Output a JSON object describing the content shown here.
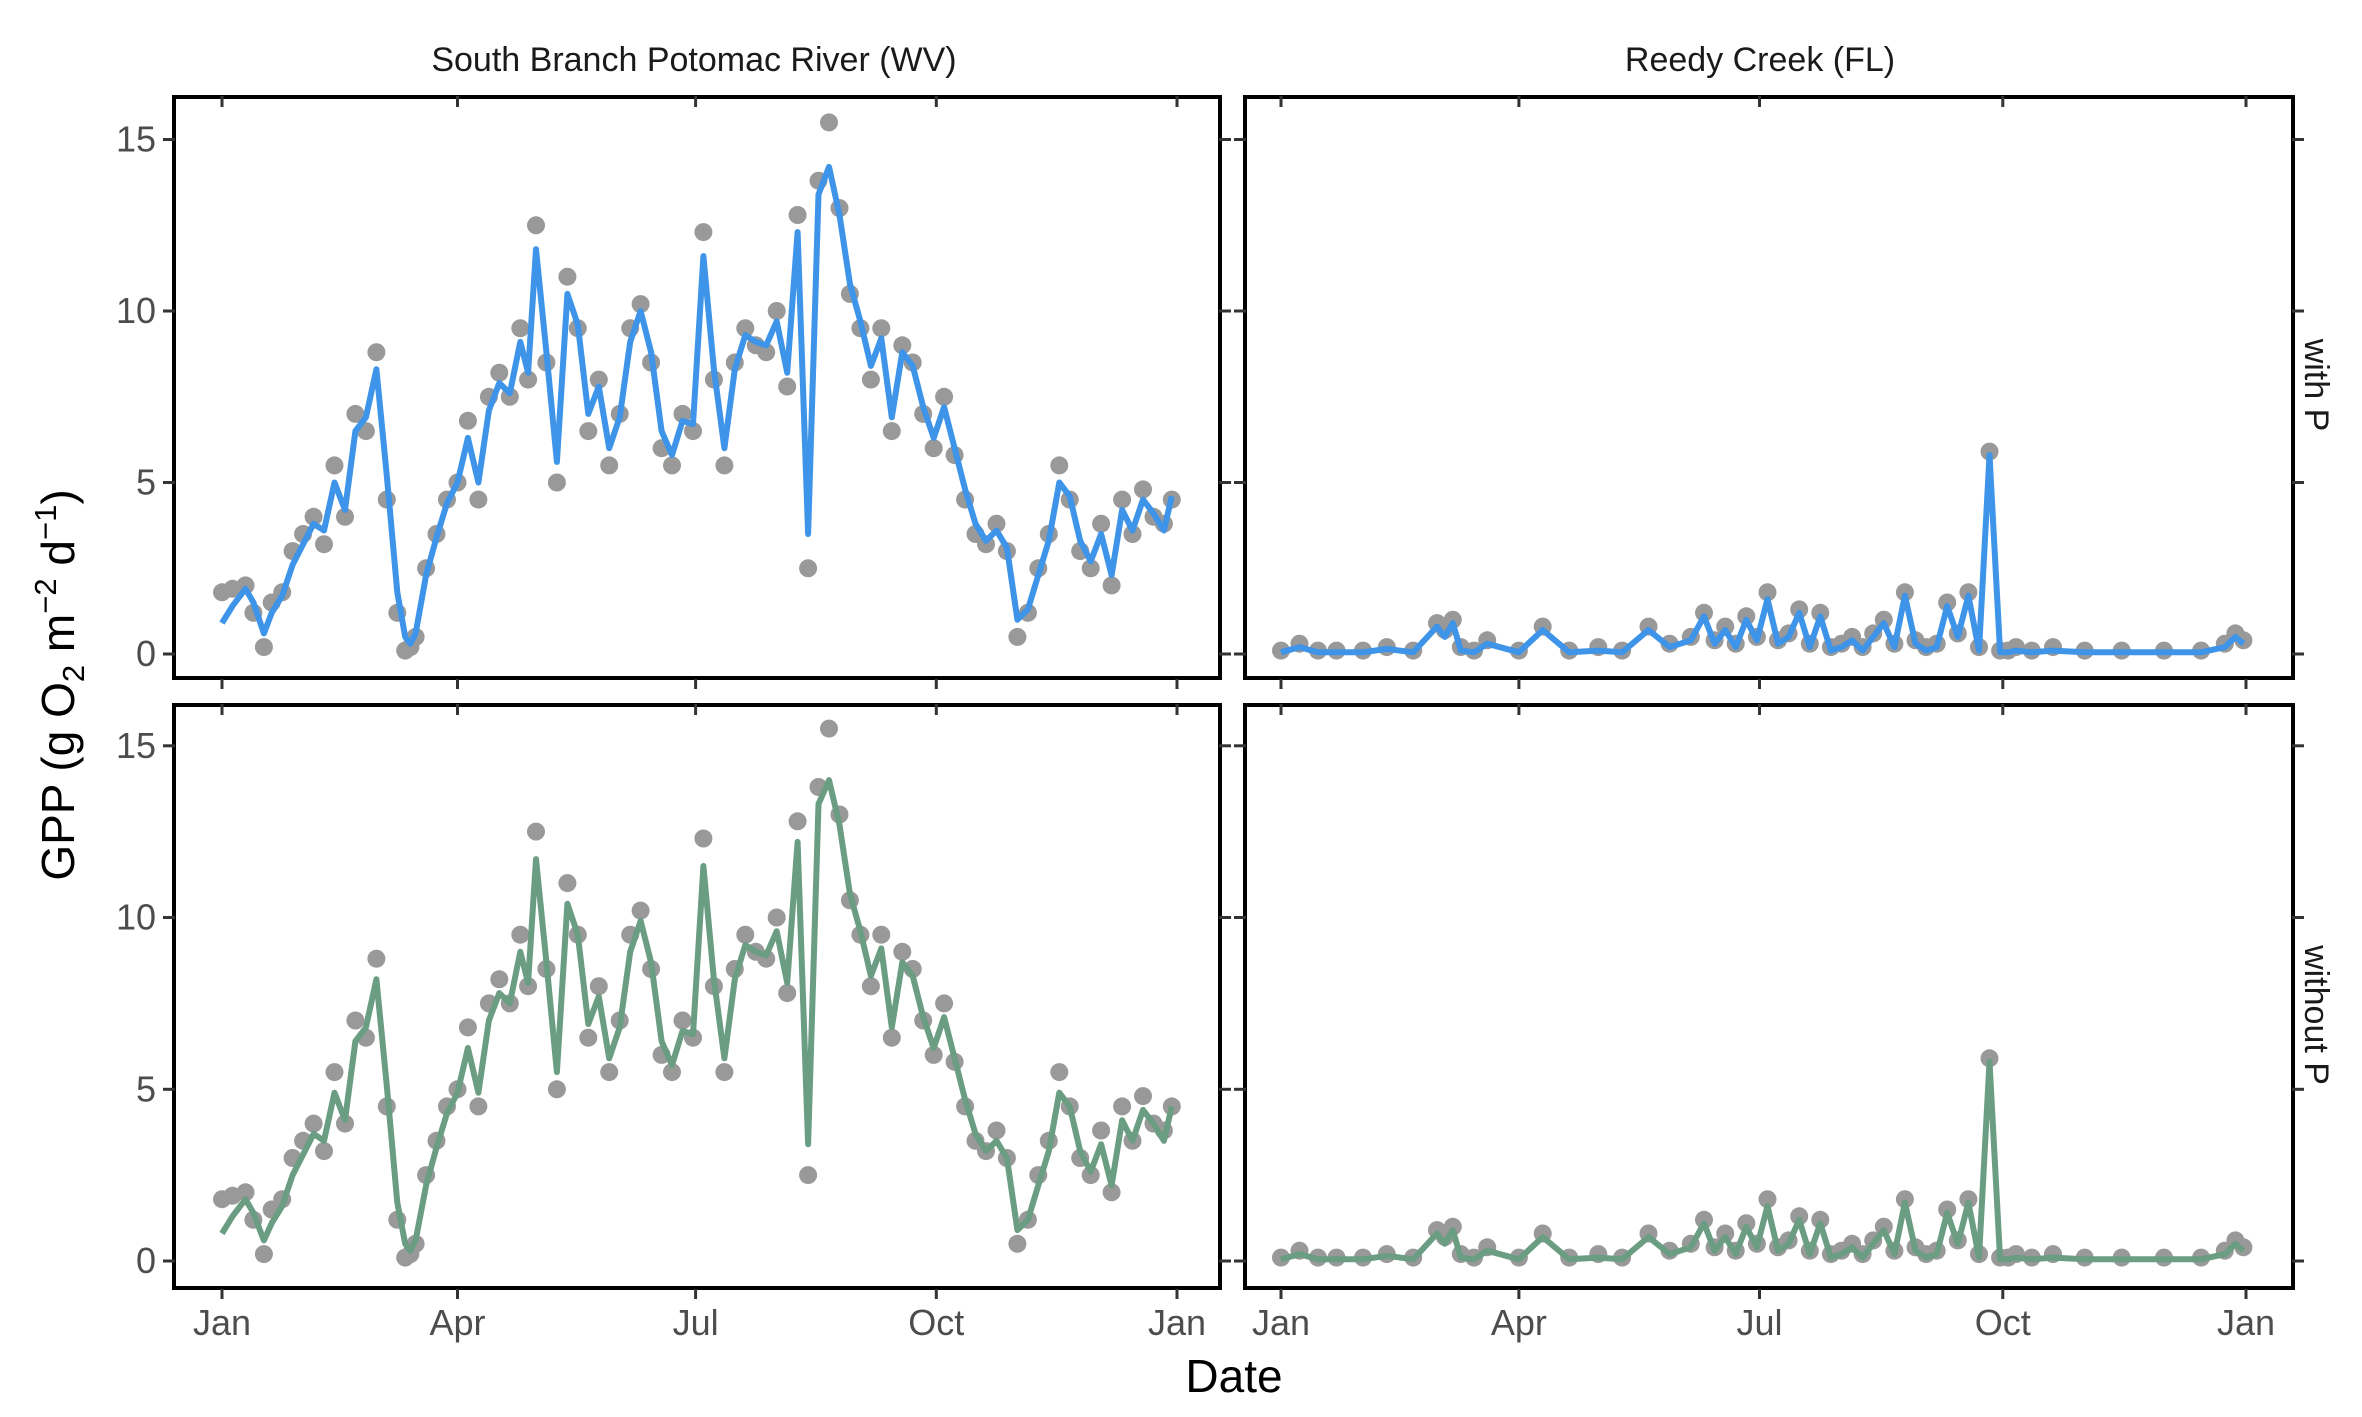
{
  "chart_data": {
    "type": "line",
    "xlabel": "Date",
    "ylabel": "GPP (g O₂ m⁻² d⁻¹)",
    "ylabel_parts": {
      "main": "GPP (g  O",
      "sub": "2",
      "mid1": " m",
      "sup1": "−2",
      "mid2": " d",
      "sup2": "−1",
      "end": ")"
    },
    "x_ticks": [
      "Jan",
      "Apr",
      "Jul",
      "Oct",
      "Jan"
    ],
    "y_ticks": [
      "0",
      "5",
      "10",
      "15"
    ],
    "xlim": [
      "2023-01-01",
      "2023-12-31"
    ],
    "ylim": [
      0,
      15.5
    ],
    "columns": [
      "South Branch Potomac River (WV)",
      "Reedy Creek (FL)"
    ],
    "rows": [
      "with P",
      "without P"
    ],
    "colors": {
      "with_P": "#3d94e8",
      "without_P": "#6a9d82",
      "observed": "#999999"
    },
    "series": {
      "south_branch": {
        "name": "South Branch Potomac River (WV)",
        "x": [
          "2023-01-01",
          "2023-01-05",
          "2023-01-10",
          "2023-01-13",
          "2023-01-17",
          "2023-01-20",
          "2023-01-24",
          "2023-01-28",
          "2023-02-01",
          "2023-02-05",
          "2023-02-09",
          "2023-02-13",
          "2023-02-17",
          "2023-02-21",
          "2023-02-25",
          "2023-03-01",
          "2023-03-05",
          "2023-03-09",
          "2023-03-12",
          "2023-03-14",
          "2023-03-16",
          "2023-03-20",
          "2023-03-24",
          "2023-03-28",
          "2023-04-01",
          "2023-04-05",
          "2023-04-09",
          "2023-04-13",
          "2023-04-17",
          "2023-04-21",
          "2023-04-25",
          "2023-04-28",
          "2023-05-01",
          "2023-05-05",
          "2023-05-09",
          "2023-05-13",
          "2023-05-17",
          "2023-05-21",
          "2023-05-25",
          "2023-05-29",
          "2023-06-02",
          "2023-06-06",
          "2023-06-10",
          "2023-06-14",
          "2023-06-18",
          "2023-06-22",
          "2023-06-26",
          "2023-06-30",
          "2023-07-04",
          "2023-07-08",
          "2023-07-12",
          "2023-07-16",
          "2023-07-20",
          "2023-07-24",
          "2023-07-28",
          "2023-08-01",
          "2023-08-05",
          "2023-08-09",
          "2023-08-13",
          "2023-08-17",
          "2023-08-21",
          "2023-08-25",
          "2023-08-29",
          "2023-09-02",
          "2023-09-06",
          "2023-09-10",
          "2023-09-14",
          "2023-09-18",
          "2023-09-22",
          "2023-09-26",
          "2023-09-30",
          "2023-10-04",
          "2023-10-08",
          "2023-10-12",
          "2023-10-16",
          "2023-10-20",
          "2023-10-24",
          "2023-10-28",
          "2023-11-01",
          "2023-11-05",
          "2023-11-09",
          "2023-11-13",
          "2023-11-17",
          "2023-11-21",
          "2023-11-25",
          "2023-11-29",
          "2023-12-03",
          "2023-12-07",
          "2023-12-11",
          "2023-12-15",
          "2023-12-19",
          "2023-12-23",
          "2023-12-27",
          "2023-12-30"
        ],
        "observed": [
          1.8,
          1.9,
          2.0,
          1.2,
          0.2,
          1.5,
          1.8,
          3.0,
          3.5,
          4.0,
          3.2,
          5.5,
          4.0,
          7.0,
          6.5,
          8.8,
          4.5,
          1.2,
          0.1,
          0.2,
          0.5,
          2.5,
          3.5,
          4.5,
          5.0,
          6.8,
          4.5,
          7.5,
          8.2,
          7.5,
          9.5,
          8.0,
          12.5,
          8.5,
          5.0,
          11.0,
          9.5,
          6.5,
          8.0,
          5.5,
          7.0,
          9.5,
          10.2,
          8.5,
          6.0,
          5.5,
          7.0,
          6.5,
          12.3,
          8.0,
          5.5,
          8.5,
          9.5,
          9.0,
          8.8,
          10.0,
          7.8,
          12.8,
          2.5,
          13.8,
          15.5,
          13.0,
          10.5,
          9.5,
          8.0,
          9.5,
          6.5,
          9.0,
          8.5,
          7.0,
          6.0,
          7.5,
          5.8,
          4.5,
          3.5,
          3.2,
          3.8,
          3.0,
          0.5,
          1.2,
          2.5,
          3.5,
          5.5,
          4.5,
          3.0,
          2.5,
          3.8,
          2.0,
          4.5,
          3.5,
          4.8,
          4.0,
          3.8,
          4.5
        ],
        "with_P": [
          0.9,
          1.4,
          1.9,
          1.5,
          0.6,
          1.2,
          1.7,
          2.6,
          3.2,
          3.8,
          3.6,
          5.0,
          4.2,
          6.5,
          6.9,
          8.3,
          5.2,
          1.8,
          0.5,
          0.3,
          0.6,
          2.3,
          3.4,
          4.4,
          5.0,
          6.3,
          5.0,
          7.1,
          7.9,
          7.6,
          9.1,
          8.2,
          11.8,
          8.8,
          5.6,
          10.5,
          9.6,
          7.0,
          7.8,
          6.0,
          6.9,
          9.1,
          10.0,
          8.8,
          6.5,
          5.8,
          6.8,
          6.7,
          11.6,
          8.3,
          6.0,
          8.3,
          9.3,
          9.1,
          9.0,
          9.7,
          8.2,
          12.3,
          3.5,
          13.4,
          14.2,
          12.8,
          10.8,
          9.7,
          8.4,
          9.2,
          6.9,
          8.8,
          8.4,
          7.2,
          6.3,
          7.2,
          6.0,
          4.8,
          3.8,
          3.3,
          3.6,
          3.1,
          1.0,
          1.3,
          2.3,
          3.3,
          5.0,
          4.6,
          3.3,
          2.7,
          3.5,
          2.3,
          4.2,
          3.6,
          4.5,
          4.1,
          3.6,
          4.6
        ],
        "without_P": [
          0.8,
          1.3,
          1.8,
          1.4,
          0.6,
          1.1,
          1.6,
          2.5,
          3.1,
          3.7,
          3.5,
          4.9,
          4.1,
          6.4,
          6.8,
          8.2,
          5.1,
          1.7,
          0.5,
          0.3,
          0.6,
          2.2,
          3.3,
          4.3,
          4.9,
          6.2,
          4.9,
          7.0,
          7.8,
          7.5,
          9.0,
          8.1,
          11.7,
          8.7,
          5.5,
          10.4,
          9.5,
          6.9,
          7.7,
          5.9,
          6.8,
          9.0,
          9.9,
          8.7,
          6.4,
          5.7,
          6.7,
          6.6,
          11.5,
          8.2,
          5.9,
          8.2,
          9.2,
          9.0,
          8.9,
          9.6,
          8.1,
          12.2,
          3.4,
          13.3,
          14.0,
          12.7,
          10.7,
          9.6,
          8.3,
          9.1,
          6.8,
          8.7,
          8.3,
          7.1,
          6.2,
          7.1,
          5.9,
          4.7,
          3.7,
          3.2,
          3.5,
          3.0,
          0.9,
          1.2,
          2.2,
          3.2,
          4.9,
          4.5,
          3.2,
          2.6,
          3.4,
          2.2,
          4.1,
          3.5,
          4.4,
          4.0,
          3.5,
          4.5
        ]
      },
      "reedy_creek": {
        "name": "Reedy Creek (FL)",
        "x": [
          "2023-01-01",
          "2023-01-08",
          "2023-01-15",
          "2023-01-22",
          "2023-02-01",
          "2023-02-10",
          "2023-02-20",
          "2023-03-01",
          "2023-03-04",
          "2023-03-07",
          "2023-03-10",
          "2023-03-15",
          "2023-03-20",
          "2023-04-01",
          "2023-04-10",
          "2023-04-20",
          "2023-05-01",
          "2023-05-10",
          "2023-05-20",
          "2023-05-28",
          "2023-06-05",
          "2023-06-10",
          "2023-06-14",
          "2023-06-18",
          "2023-06-22",
          "2023-06-26",
          "2023-06-30",
          "2023-07-04",
          "2023-07-08",
          "2023-07-12",
          "2023-07-16",
          "2023-07-20",
          "2023-07-24",
          "2023-07-28",
          "2023-08-01",
          "2023-08-05",
          "2023-08-09",
          "2023-08-13",
          "2023-08-17",
          "2023-08-21",
          "2023-08-25",
          "2023-08-29",
          "2023-09-02",
          "2023-09-06",
          "2023-09-10",
          "2023-09-14",
          "2023-09-18",
          "2023-09-22",
          "2023-09-26",
          "2023-09-30",
          "2023-10-03",
          "2023-10-06",
          "2023-10-12",
          "2023-10-20",
          "2023-11-01",
          "2023-11-15",
          "2023-12-01",
          "2023-12-15",
          "2023-12-24",
          "2023-12-28",
          "2023-12-31"
        ],
        "observed": [
          0.1,
          0.3,
          0.1,
          0.1,
          0.1,
          0.2,
          0.1,
          0.9,
          0.7,
          1.0,
          0.2,
          0.1,
          0.4,
          0.1,
          0.8,
          0.1,
          0.2,
          0.1,
          0.8,
          0.3,
          0.5,
          1.2,
          0.4,
          0.8,
          0.3,
          1.1,
          0.5,
          1.8,
          0.4,
          0.6,
          1.3,
          0.3,
          1.2,
          0.2,
          0.3,
          0.5,
          0.2,
          0.6,
          1.0,
          0.3,
          1.8,
          0.4,
          0.2,
          0.3,
          1.5,
          0.6,
          1.8,
          0.2,
          5.9,
          0.1,
          0.1,
          0.2,
          0.1,
          0.2,
          0.1,
          0.1,
          0.1,
          0.1,
          0.3,
          0.6,
          0.4
        ],
        "with_P": [
          0.05,
          0.2,
          0.05,
          0.05,
          0.05,
          0.15,
          0.05,
          0.8,
          0.5,
          0.9,
          0.1,
          0.05,
          0.3,
          0.05,
          0.7,
          0.05,
          0.1,
          0.05,
          0.7,
          0.2,
          0.4,
          1.1,
          0.3,
          0.7,
          0.2,
          1.0,
          0.4,
          1.6,
          0.3,
          0.5,
          1.2,
          0.2,
          1.1,
          0.1,
          0.2,
          0.4,
          0.1,
          0.5,
          0.9,
          0.2,
          1.7,
          0.3,
          0.1,
          0.2,
          1.4,
          0.5,
          1.7,
          0.1,
          5.8,
          0.05,
          0.05,
          0.1,
          0.05,
          0.1,
          0.05,
          0.05,
          0.05,
          0.05,
          0.2,
          0.5,
          0.3
        ],
        "without_P": [
          0.05,
          0.2,
          0.05,
          0.05,
          0.05,
          0.15,
          0.05,
          0.8,
          0.5,
          0.9,
          0.1,
          0.05,
          0.3,
          0.05,
          0.7,
          0.05,
          0.1,
          0.05,
          0.7,
          0.2,
          0.4,
          1.1,
          0.3,
          0.7,
          0.2,
          1.0,
          0.4,
          1.6,
          0.3,
          0.5,
          1.2,
          0.2,
          1.1,
          0.1,
          0.2,
          0.4,
          0.1,
          0.5,
          0.9,
          0.2,
          1.7,
          0.3,
          0.1,
          0.2,
          1.4,
          0.5,
          1.7,
          0.1,
          5.8,
          0.05,
          0.05,
          0.1,
          0.05,
          0.1,
          0.05,
          0.05,
          0.05,
          0.05,
          0.2,
          0.5,
          0.3
        ]
      }
    }
  }
}
